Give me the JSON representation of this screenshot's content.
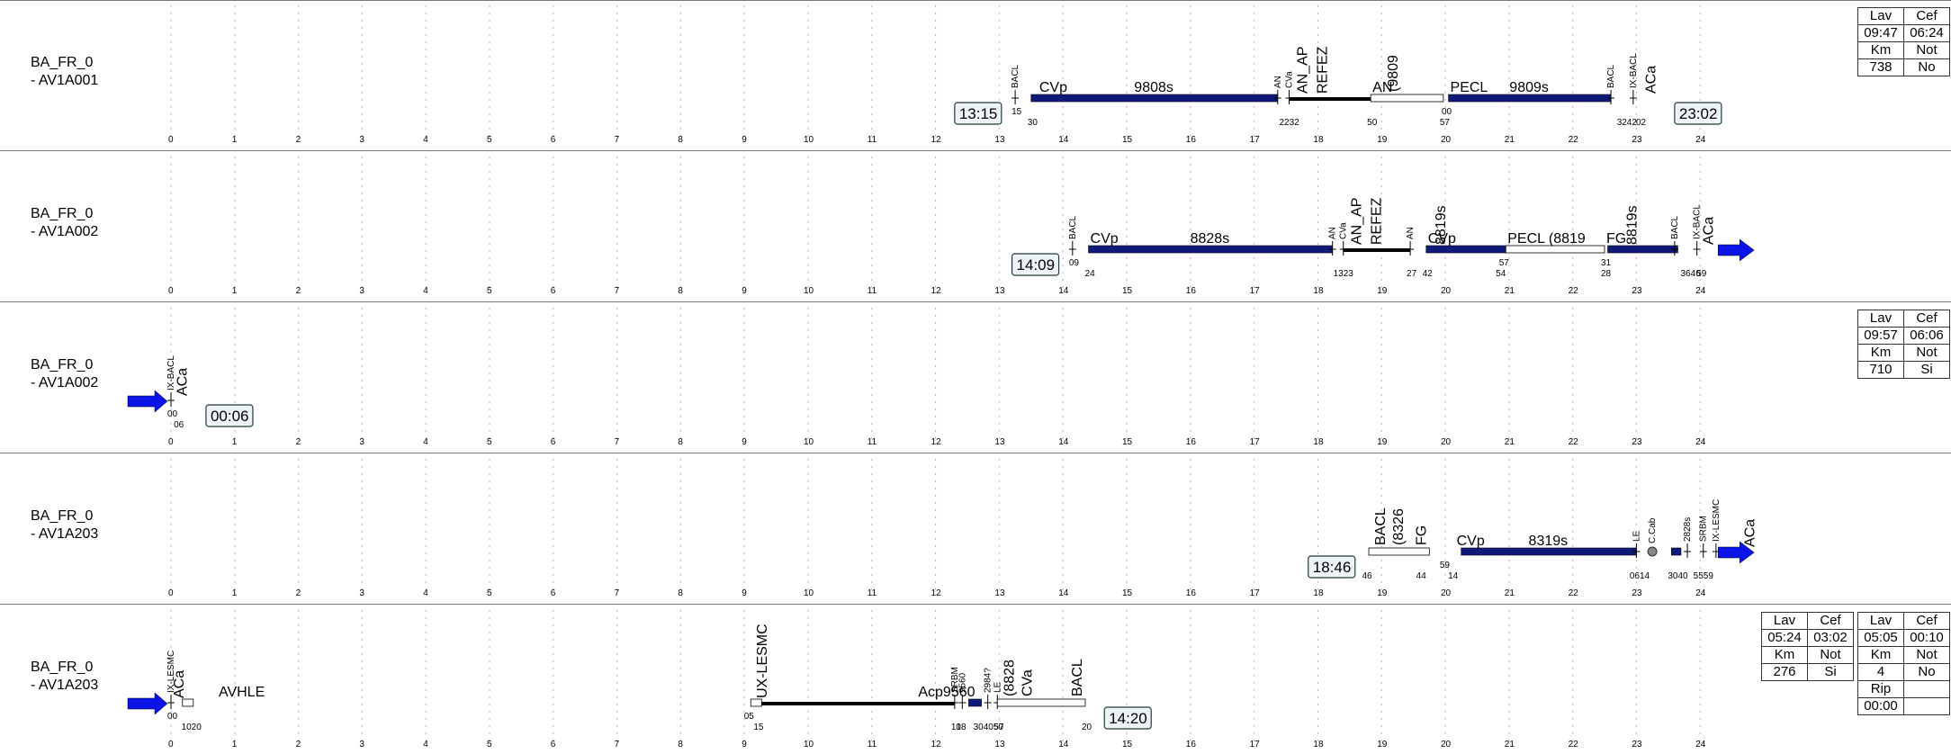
{
  "colors": {
    "service": "#101a7a",
    "idle": "#000000",
    "arrow": "#0a14e6",
    "grid": "#b5b5b5",
    "timebox": "#eef3f6",
    "timebox_border": "#1d3a3a"
  },
  "hours": [
    "0",
    "1",
    "2",
    "3",
    "4",
    "5",
    "6",
    "7",
    "8",
    "9",
    "10",
    "11",
    "12",
    "13",
    "14",
    "15",
    "16",
    "17",
    "18",
    "19",
    "20",
    "21",
    "22",
    "23",
    "24"
  ],
  "lanes": [
    {
      "title": "BA_FR_0",
      "subtitle": "- AV1A001",
      "info": [
        [
          "Lav",
          "Cef"
        ],
        [
          "09:47",
          "06:24"
        ],
        [
          "Km",
          "Not"
        ],
        [
          "738",
          "No"
        ]
      ],
      "start_time": "13:15",
      "end_time": "23:02",
      "arrow_in": false,
      "arrow_out": false,
      "blocks": [
        {
          "kind": "tick",
          "at": 13.25,
          "vlabel": "BACL",
          "small": true
        },
        {
          "kind": "service",
          "from": 13.5,
          "to": 17.37,
          "label": "9808s"
        },
        {
          "kind": "text",
          "at": 13.6,
          "text": "CVp"
        },
        {
          "kind": "tick",
          "at": 17.37,
          "vlabel": "AN",
          "small": true
        },
        {
          "kind": "tick",
          "at": 17.55,
          "vlabel": "CVa",
          "small": true
        },
        {
          "kind": "idle",
          "from": 17.55,
          "to": 18.83,
          "vlabel": "AN_AP",
          "vlabel2": "REFEZ"
        },
        {
          "kind": "outline",
          "from": 18.83,
          "to": 19.97,
          "text": "AN",
          "vlabel": "(9809"
        },
        {
          "kind": "service",
          "from": 20.05,
          "to": 22.6,
          "label": "9809s"
        },
        {
          "kind": "text",
          "at": 20.05,
          "text": "PECL"
        },
        {
          "kind": "tick",
          "at": 22.6,
          "vlabel": "BACL",
          "small": true
        },
        {
          "kind": "tick",
          "at": 22.95,
          "vlabel": "IX-BACL",
          "small": true
        },
        {
          "kind": "vtext",
          "at": 23.3,
          "text": "ACa"
        }
      ],
      "minutes": [
        [
          "15",
          13.25,
          "up"
        ],
        [
          "30",
          13.5,
          "down"
        ],
        [
          "2232",
          17.45,
          "down"
        ],
        [
          "50",
          18.83,
          "down"
        ],
        [
          "00",
          20.0,
          "up"
        ],
        [
          "57",
          19.97,
          "down"
        ],
        [
          "3242",
          22.75,
          "down"
        ],
        [
          "02",
          23.05,
          "down"
        ]
      ]
    },
    {
      "title": "BA_FR_0",
      "subtitle": "- AV1A002",
      "info": null,
      "start_time": "14:09",
      "end_time": "",
      "arrow_in": false,
      "arrow_out": true,
      "blocks": [
        {
          "kind": "tick",
          "at": 14.15,
          "vlabel": "BACL",
          "small": true
        },
        {
          "kind": "service",
          "from": 14.4,
          "to": 18.23,
          "label": "8828s"
        },
        {
          "kind": "text",
          "at": 14.4,
          "text": "CVp"
        },
        {
          "kind": "tick",
          "at": 18.23,
          "vlabel": "AN",
          "small": true
        },
        {
          "kind": "tick",
          "at": 18.4,
          "vlabel": "CVa",
          "small": true
        },
        {
          "kind": "idle",
          "from": 18.4,
          "to": 19.45,
          "vlabel": "AN_AP",
          "vlabel2": "REFEZ"
        },
        {
          "kind": "tick",
          "at": 19.45,
          "vlabel": "AN",
          "small": true
        },
        {
          "kind": "service",
          "from": 19.7,
          "to": 20.95,
          "label": ""
        },
        {
          "kind": "text",
          "at": 19.7,
          "text": "CVp"
        },
        {
          "kind": "vtext",
          "at": 20.0,
          "text": "8819s"
        },
        {
          "kind": "outline",
          "from": 20.95,
          "to": 22.5,
          "text": "PECL  (8819",
          "vlabel": ""
        },
        {
          "kind": "text",
          "at": 22.5,
          "text": "FG"
        },
        {
          "kind": "service",
          "from": 22.55,
          "to": 23.65,
          "label": ""
        },
        {
          "kind": "vtext",
          "at": 23.0,
          "text": "8819s"
        },
        {
          "kind": "tick",
          "at": 23.6,
          "vlabel": "BACL",
          "small": true
        },
        {
          "kind": "tick",
          "at": 23.95,
          "vlabel": "IX-BACL",
          "small": true
        },
        {
          "kind": "vtext",
          "at": 24.2,
          "text": "ACa"
        }
      ],
      "minutes": [
        [
          "09",
          14.15,
          "up"
        ],
        [
          "24",
          14.4,
          "down"
        ],
        [
          "1323",
          18.3,
          "down"
        ],
        [
          "27",
          19.45,
          "down"
        ],
        [
          "42",
          19.7,
          "down"
        ],
        [
          "57",
          20.9,
          "up"
        ],
        [
          "54",
          20.85,
          "down"
        ],
        [
          "31",
          22.5,
          "up"
        ],
        [
          "28",
          22.5,
          "down"
        ],
        [
          "3646",
          23.75,
          "down"
        ],
        [
          "59",
          24.0,
          "down"
        ]
      ]
    },
    {
      "title": "BA_FR_0",
      "subtitle": "- AV1A002",
      "info": [
        [
          "Lav",
          "Cef"
        ],
        [
          "09:57",
          "06:06"
        ],
        [
          "Km",
          "Not"
        ],
        [
          "710",
          "Si"
        ]
      ],
      "start_time": "",
      "end_time": "00:06",
      "arrow_in": true,
      "arrow_out": false,
      "blocks": [
        {
          "kind": "tick",
          "at": 0.0,
          "vlabel": "IX-BACL",
          "small": true
        },
        {
          "kind": "vtext",
          "at": 0.25,
          "text": "ACa"
        }
      ],
      "minutes": [
        [
          "00",
          0.0,
          "up"
        ],
        [
          "06",
          0.1,
          "down"
        ]
      ]
    },
    {
      "title": "BA_FR_0",
      "subtitle": "- AV1A203",
      "info": null,
      "start_time": "18:46",
      "end_time": "",
      "arrow_in": false,
      "arrow_out": true,
      "blocks": [
        {
          "kind": "outline",
          "from": 18.8,
          "to": 19.75,
          "text": "",
          "vlabel": "(8326",
          "vlabel3": "BACL",
          "vlabel4": "FG"
        },
        {
          "kind": "service",
          "from": 20.25,
          "to": 23.0,
          "label": "8319s"
        },
        {
          "kind": "text",
          "at": 20.15,
          "text": "CVp"
        },
        {
          "kind": "tick",
          "at": 23.0,
          "vlabel": "LE",
          "small": true
        },
        {
          "kind": "circle",
          "at": 23.25,
          "vlabel": "C.Cab"
        },
        {
          "kind": "service",
          "from": 23.55,
          "to": 23.7,
          "label": ""
        },
        {
          "kind": "tick",
          "at": 23.8,
          "vlabel": "2828s",
          "small": true
        },
        {
          "kind": "tick",
          "at": 24.05,
          "vlabel": "SRBM",
          "small": true
        },
        {
          "kind": "tick",
          "at": 24.25,
          "vlabel": "IX-LESMC",
          "small": true
        },
        {
          "kind": "vtext",
          "at": 24.85,
          "text": "ACa"
        }
      ],
      "minutes": [
        [
          "46",
          18.75,
          "down"
        ],
        [
          "59",
          19.97,
          "up"
        ],
        [
          "44",
          19.6,
          "down"
        ],
        [
          "14",
          20.1,
          "down"
        ],
        [
          "0614",
          22.95,
          "down"
        ],
        [
          "3040",
          23.55,
          "down"
        ],
        [
          "5559",
          23.95,
          "down"
        ]
      ]
    },
    {
      "title": "BA_FR_0",
      "subtitle": "- AV1A203",
      "info": [
        [
          "Lav",
          "Cef"
        ],
        [
          "05:24",
          "03:02"
        ],
        [
          "Km",
          "Not"
        ],
        [
          "276",
          "Si"
        ]
      ],
      "info2": [
        [
          "Lav",
          "Cef"
        ],
        [
          "05:05",
          "00:10"
        ],
        [
          "Km",
          "Not"
        ],
        [
          "4",
          "No"
        ],
        [
          "Rip",
          ""
        ],
        [
          "00:00",
          ""
        ]
      ],
      "start_time": "",
      "end_time": "14:20",
      "arrow_in": true,
      "arrow_out": false,
      "blocks": [
        {
          "kind": "tick",
          "at": 0.0,
          "vlabel": "IX-LESMC",
          "small": true
        },
        {
          "kind": "vtext",
          "at": 0.2,
          "text": "ACa"
        },
        {
          "kind": "outline",
          "from": 0.18,
          "to": 0.35,
          "text": "",
          "vlabel": ""
        },
        {
          "kind": "text",
          "at": 0.72,
          "text": "AVHLE"
        },
        {
          "kind": "outline",
          "from": 9.1,
          "to": 9.27,
          "text": "",
          "vlabel": ""
        },
        {
          "kind": "idle",
          "from": 9.27,
          "to": 12.3,
          "vlabel": "",
          "vlabel2": ""
        },
        {
          "kind": "vtext",
          "at": 9.35,
          "text": "UX-LESMC"
        },
        {
          "kind": "text",
          "at": 11.7,
          "text": "Acp9560"
        },
        {
          "kind": "tick",
          "at": 12.3,
          "vlabel": "SRBM",
          "small": true
        },
        {
          "kind": "tick",
          "at": 12.42,
          "vlabel": "9560",
          "small": true
        },
        {
          "kind": "service",
          "from": 12.52,
          "to": 12.72,
          "label": ""
        },
        {
          "kind": "tick",
          "at": 12.82,
          "vlabel": "2984?",
          "small": true
        },
        {
          "kind": "tick",
          "at": 12.97,
          "vlabel": "LE",
          "small": true
        },
        {
          "kind": "outline",
          "from": 12.97,
          "to": 14.35,
          "text": "",
          "vlabel": "CVa",
          "vlabel3": "(8828",
          "vlabel4": "BACL"
        }
      ],
      "minutes": [
        [
          "05",
          9.05,
          "up"
        ],
        [
          "15",
          9.2,
          "down"
        ],
        [
          "10",
          12.3,
          "down"
        ],
        [
          "18",
          12.38,
          "down"
        ],
        [
          "304050",
          12.65,
          "down"
        ],
        [
          "57",
          12.97,
          "down"
        ],
        [
          "20",
          14.35,
          "down"
        ],
        [
          "1020",
          0.22,
          "down"
        ],
        [
          "00",
          0.0,
          "up"
        ]
      ]
    }
  ]
}
